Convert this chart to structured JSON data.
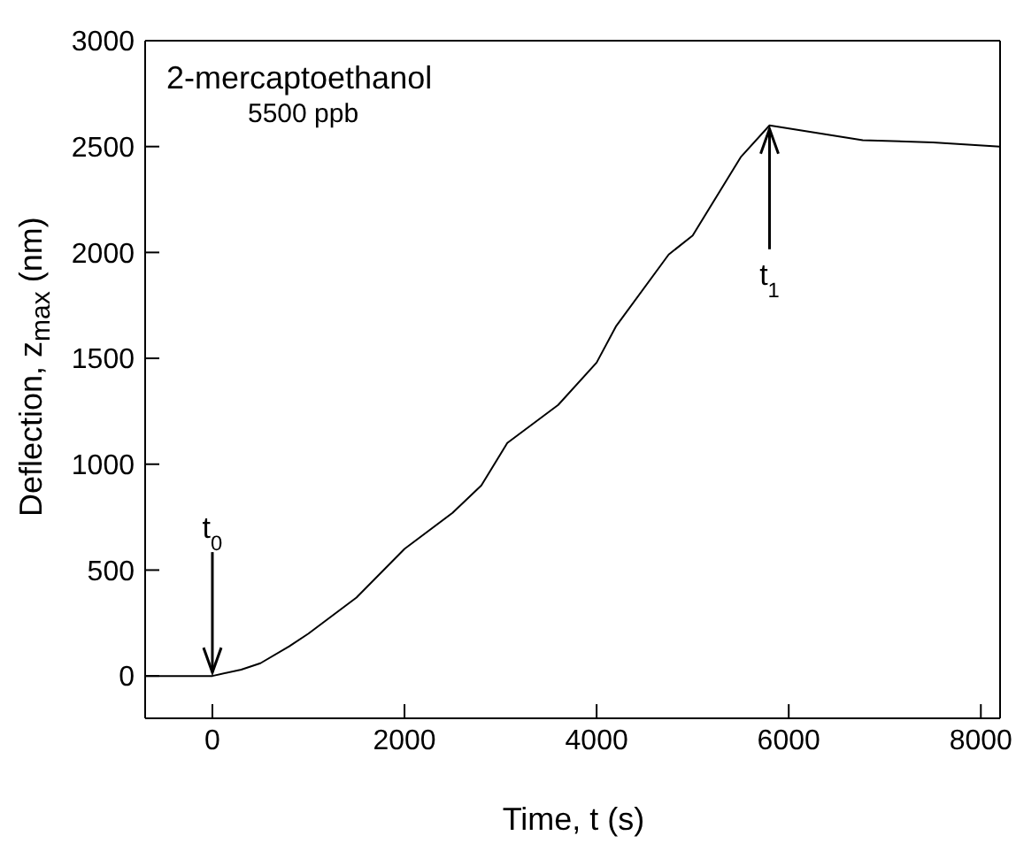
{
  "chart_data": {
    "type": "line",
    "xlabel": "Time, t (s)",
    "ylabel": "Deflection, z$_{max}$ (nm)",
    "x": [
      -700,
      -300,
      0,
      300,
      500,
      800,
      1000,
      1500,
      2000,
      2500,
      2800,
      3070,
      3600,
      4000,
      4200,
      4750,
      5000,
      5500,
      5800,
      6770,
      7500,
      8200
    ],
    "series": [
      {
        "color": "#000000",
        "values": [
          0,
          0,
          0,
          30,
          60,
          140,
          200,
          370,
          600,
          770,
          900,
          1100,
          1280,
          1480,
          1650,
          1990,
          2080,
          2450,
          2600,
          2530,
          2520,
          2500
        ]
      }
    ],
    "xlim": [
      -700,
      8200
    ],
    "xticks": [
      0,
      2000,
      4000,
      6000,
      8000
    ],
    "ylim": [
      -200,
      3000
    ],
    "yticks": [
      0,
      500,
      1000,
      1500,
      2000,
      2500,
      3000
    ],
    "grid": false,
    "marker": "none",
    "line_style": "solid",
    "annotations": [
      "2-mercaptoethanol",
      "5500 ppb",
      {
        "text": "t$_{0}$",
        "x": 0,
        "y": 0
      },
      {
        "text": "t$_{1}$",
        "x": 5800,
        "y": 2600
      }
    ]
  }
}
